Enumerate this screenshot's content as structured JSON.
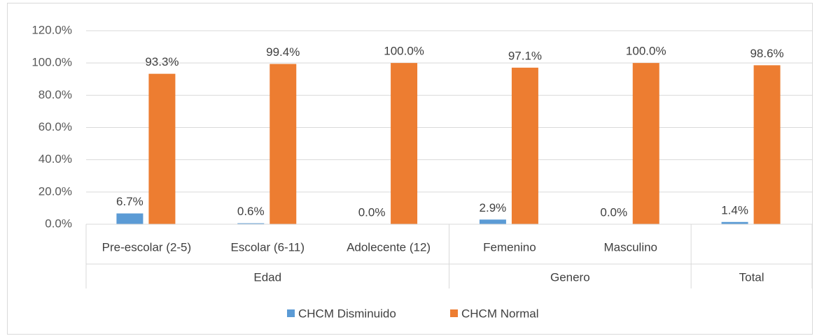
{
  "chart_data": {
    "type": "bar",
    "categories": [
      "Pre-escolar (2-5)",
      "Escolar (6-11)",
      "Adolecente (12)",
      "Femenino",
      "Masculino",
      null
    ],
    "groups": [
      {
        "label": "Edad",
        "span": 3
      },
      {
        "label": "Genero",
        "span": 2
      },
      {
        "label": "Total",
        "span": 1
      }
    ],
    "series": [
      {
        "name": "CHCM Disminuido",
        "color": "#5b9bd5",
        "values": [
          6.7,
          0.6,
          0,
          2.9,
          0,
          1.4
        ],
        "value_labels": [
          "6.7%",
          "0.6%",
          "0.0%",
          "2.9%",
          "0.0%",
          "1.4%"
        ]
      },
      {
        "name": "CHCM Normal",
        "color": "#ed7d31",
        "values": [
          93.3,
          99.4,
          100,
          97.1,
          100,
          98.6
        ],
        "value_labels": [
          "93.3%",
          "99.4%",
          "100.0%",
          "97.1%",
          "100.0%",
          "98.6%"
        ]
      }
    ],
    "ylim": [
      0,
      120
    ],
    "yticks": [
      {
        "value": 0,
        "label": "0.0%"
      },
      {
        "value": 20,
        "label": "20.0%"
      },
      {
        "value": 40,
        "label": "40.0%"
      },
      {
        "value": 60,
        "label": "60.0%"
      },
      {
        "value": 80,
        "label": "80.0%"
      },
      {
        "value": 100,
        "label": "100.0%"
      },
      {
        "value": 120,
        "label": "120.0%"
      }
    ],
    "grid": true,
    "legend": "bottom"
  }
}
